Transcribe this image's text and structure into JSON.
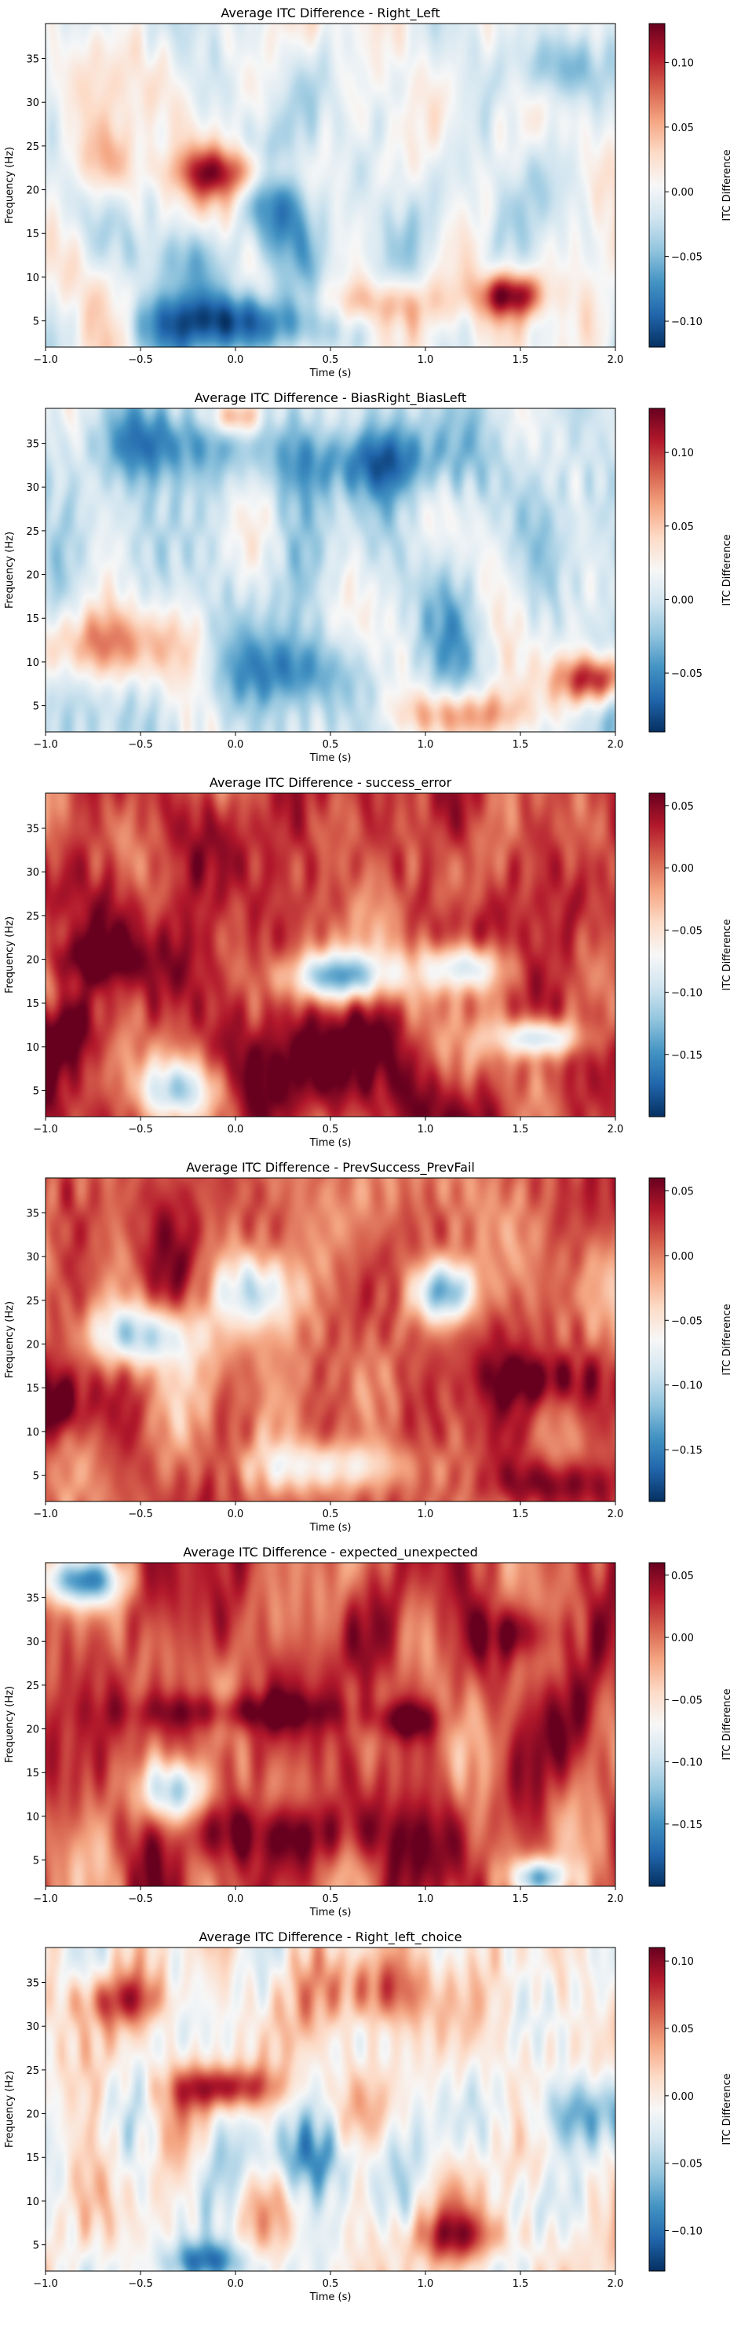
{
  "chart_data": [
    {
      "type": "heatmap",
      "title": "Average ITC Difference - Right_Left",
      "xlabel": "Time (s)",
      "ylabel": "Frequency (Hz)",
      "colorbar_label": "ITC Difference",
      "xlim": [
        -1.0,
        2.0
      ],
      "ylim": [
        2,
        39
      ],
      "x_ticks": [
        "−1.0",
        "−0.5",
        "0.0",
        "0.5",
        "1.0",
        "1.5",
        "2.0"
      ],
      "y_ticks": [
        "5",
        "10",
        "15",
        "20",
        "25",
        "30",
        "35"
      ],
      "y_tick_values": [
        5,
        10,
        15,
        20,
        25,
        30,
        35
      ],
      "colorbar_range": [
        -0.12,
        0.13
      ],
      "colorbar_ticks": [
        "−0.10",
        "−0.05",
        "0.00",
        "0.05",
        "0.10"
      ],
      "colorbar_tick_values": [
        -0.1,
        -0.05,
        0.0,
        0.05,
        0.1
      ],
      "colormap": "RdBu_r",
      "seed": 11,
      "features": [
        {
          "t": -0.05,
          "f": 22,
          "v": 0.09,
          "st": 0.22,
          "sf": 2.0
        },
        {
          "t": -0.05,
          "f": 5,
          "v": -0.11,
          "st": 0.35,
          "sf": 2.5
        },
        {
          "t": 0.25,
          "f": 18,
          "v": -0.09,
          "st": 0.15,
          "sf": 5.0
        },
        {
          "t": 1.45,
          "f": 8,
          "v": 0.12,
          "st": 0.12,
          "sf": 1.8
        },
        {
          "t": 0.7,
          "f": 7,
          "v": 0.06,
          "st": 0.3,
          "sf": 2.0
        },
        {
          "t": -0.7,
          "f": 23,
          "v": 0.05,
          "st": 0.15,
          "sf": 3.0
        },
        {
          "t": 1.7,
          "f": 34,
          "v": -0.08,
          "st": 0.15,
          "sf": 3.0
        },
        {
          "t": -0.3,
          "f": 12,
          "v": -0.06,
          "st": 0.2,
          "sf": 3.0
        }
      ]
    },
    {
      "type": "heatmap",
      "title": "Average ITC Difference - BiasRight_BiasLeft",
      "xlabel": "Time (s)",
      "ylabel": "Frequency (Hz)",
      "colorbar_label": "ITC Difference",
      "xlim": [
        -1.0,
        2.0
      ],
      "ylim": [
        2,
        39
      ],
      "x_ticks": [
        "−1.0",
        "−0.5",
        "0.0",
        "0.5",
        "1.0",
        "1.5",
        "2.0"
      ],
      "y_ticks": [
        "5",
        "10",
        "15",
        "20",
        "25",
        "30",
        "35"
      ],
      "y_tick_values": [
        5,
        10,
        15,
        20,
        25,
        30,
        35
      ],
      "colorbar_range": [
        -0.09,
        0.13
      ],
      "colorbar_ticks": [
        "−0.05",
        "0.00",
        "0.05",
        "0.10"
      ],
      "colorbar_tick_values": [
        -0.05,
        0.0,
        0.05,
        0.1
      ],
      "colormap": "RdBu_r",
      "seed": 23,
      "features": [
        {
          "t": -0.7,
          "f": 12,
          "v": 0.07,
          "st": 0.3,
          "sf": 3.0
        },
        {
          "t": 1.9,
          "f": 8,
          "v": 0.12,
          "st": 0.15,
          "sf": 2.0
        },
        {
          "t": 0.7,
          "f": 33,
          "v": -0.07,
          "st": 0.3,
          "sf": 3.0
        },
        {
          "t": 0.3,
          "f": 9,
          "v": -0.06,
          "st": 0.2,
          "sf": 3.0
        },
        {
          "t": 1.2,
          "f": 4,
          "v": 0.07,
          "st": 0.25,
          "sf": 2.0
        },
        {
          "t": -0.4,
          "f": 35,
          "v": -0.06,
          "st": 0.25,
          "sf": 3.0
        },
        {
          "t": 0.0,
          "f": 38,
          "v": 0.08,
          "st": 0.1,
          "sf": 1.5
        }
      ]
    },
    {
      "type": "heatmap",
      "title": "Average ITC Difference - success_error",
      "xlabel": "Time (s)",
      "ylabel": "Frequency (Hz)",
      "colorbar_label": "ITC Difference",
      "xlim": [
        -1.0,
        2.0
      ],
      "ylim": [
        2,
        39
      ],
      "x_ticks": [
        "−1.0",
        "−0.5",
        "0.0",
        "0.5",
        "1.0",
        "1.5",
        "2.0"
      ],
      "y_ticks": [
        "5",
        "10",
        "15",
        "20",
        "25",
        "30",
        "35"
      ],
      "y_tick_values": [
        5,
        10,
        15,
        20,
        25,
        30,
        35
      ],
      "colorbar_range": [
        -0.2,
        0.06
      ],
      "colorbar_ticks": [
        "−0.15",
        "−0.10",
        "−0.05",
        "0.00",
        "0.05"
      ],
      "colorbar_tick_values": [
        -0.15,
        -0.1,
        -0.05,
        0.0,
        0.05
      ],
      "colormap": "RdBu_r",
      "seed": 37,
      "offset": 0.02,
      "features": [
        {
          "t": -0.85,
          "f": 12,
          "v": 0.05,
          "st": 0.15,
          "sf": 3.0
        },
        {
          "t": 0.25,
          "f": 7,
          "v": 0.06,
          "st": 0.25,
          "sf": 4.0
        },
        {
          "t": 0.55,
          "f": 18,
          "v": -0.15,
          "st": 0.2,
          "sf": 2.0
        },
        {
          "t": 1.2,
          "f": 19,
          "v": -0.13,
          "st": 0.15,
          "sf": 2.0
        },
        {
          "t": -0.3,
          "f": 5,
          "v": -0.12,
          "st": 0.15,
          "sf": 2.5
        },
        {
          "t": 1.6,
          "f": 11,
          "v": -0.12,
          "st": 0.15,
          "sf": 1.5
        },
        {
          "t": -0.8,
          "f": 20,
          "v": 0.05,
          "st": 0.2,
          "sf": 2.0
        }
      ]
    },
    {
      "type": "heatmap",
      "title": "Average ITC Difference - PrevSuccess_PrevFail",
      "xlabel": "Time (s)",
      "ylabel": "Frequency (Hz)",
      "colorbar_label": "ITC Difference",
      "xlim": [
        -1.0,
        2.0
      ],
      "ylim": [
        2,
        39
      ],
      "x_ticks": [
        "−1.0",
        "−0.5",
        "0.0",
        "0.5",
        "1.0",
        "1.5",
        "2.0"
      ],
      "y_ticks": [
        "5",
        "10",
        "15",
        "20",
        "25",
        "30",
        "35"
      ],
      "y_tick_values": [
        5,
        10,
        15,
        20,
        25,
        30,
        35
      ],
      "colorbar_range": [
        -0.19,
        0.06
      ],
      "colorbar_ticks": [
        "−0.15",
        "−0.10",
        "−0.05",
        "0.00",
        "0.05"
      ],
      "colorbar_tick_values": [
        -0.15,
        -0.1,
        -0.05,
        0.0,
        0.05
      ],
      "colormap": "RdBu_r",
      "seed": 53,
      "offset": 0.01,
      "features": [
        {
          "t": -0.95,
          "f": 13,
          "v": 0.06,
          "st": 0.12,
          "sf": 2.5
        },
        {
          "t": 1.1,
          "f": 26,
          "v": -0.15,
          "st": 0.12,
          "sf": 2.5
        },
        {
          "t": -0.5,
          "f": 21,
          "v": -0.12,
          "st": 0.2,
          "sf": 2.5
        },
        {
          "t": 1.7,
          "f": 4,
          "v": 0.06,
          "st": 0.25,
          "sf": 2.0
        },
        {
          "t": 1.6,
          "f": 16,
          "v": 0.05,
          "st": 0.2,
          "sf": 2.0
        },
        {
          "t": 0.1,
          "f": 26,
          "v": -0.1,
          "st": 0.15,
          "sf": 3.0
        },
        {
          "t": 0.5,
          "f": 6,
          "v": -0.08,
          "st": 0.3,
          "sf": 2.0
        }
      ]
    },
    {
      "type": "heatmap",
      "title": "Average ITC Difference - expected_unexpected",
      "xlabel": "Time (s)",
      "ylabel": "Frequency (Hz)",
      "colorbar_label": "ITC Difference",
      "xlim": [
        -1.0,
        2.0
      ],
      "ylim": [
        2,
        39
      ],
      "x_ticks": [
        "−1.0",
        "−0.5",
        "0.0",
        "0.5",
        "1.0",
        "1.5",
        "2.0"
      ],
      "y_ticks": [
        "5",
        "10",
        "15",
        "20",
        "25",
        "30",
        "35"
      ],
      "y_tick_values": [
        5,
        10,
        15,
        20,
        25,
        30,
        35
      ],
      "colorbar_range": [
        -0.2,
        0.06
      ],
      "colorbar_ticks": [
        "−0.15",
        "−0.10",
        "−0.05",
        "0.00",
        "0.05"
      ],
      "colorbar_tick_values": [
        -0.15,
        -0.1,
        -0.05,
        0.0,
        0.05
      ],
      "colormap": "RdBu_r",
      "seed": 71,
      "offset": 0.015,
      "features": [
        {
          "t": -0.8,
          "f": 37,
          "v": -0.15,
          "st": 0.15,
          "sf": 2.0
        },
        {
          "t": 0.0,
          "f": 22,
          "v": 0.05,
          "st": 0.4,
          "sf": 1.5
        },
        {
          "t": 0.9,
          "f": 21,
          "v": 0.06,
          "st": 0.12,
          "sf": 1.5
        },
        {
          "t": -0.3,
          "f": 13,
          "v": -0.12,
          "st": 0.15,
          "sf": 2.5
        },
        {
          "t": 0.3,
          "f": 8,
          "v": 0.05,
          "st": 0.4,
          "sf": 2.5
        },
        {
          "t": 1.5,
          "f": 31,
          "v": 0.05,
          "st": 0.15,
          "sf": 2.0
        },
        {
          "t": 1.6,
          "f": 3,
          "v": -0.14,
          "st": 0.1,
          "sf": 1.5
        }
      ]
    },
    {
      "type": "heatmap",
      "title": "Average ITC Difference - Right_left_choice",
      "xlabel": "Time (s)",
      "ylabel": "Frequency (Hz)",
      "colorbar_label": "ITC Difference",
      "xlim": [
        -1.0,
        2.0
      ],
      "ylim": [
        2,
        39
      ],
      "x_ticks": [
        "−1.0",
        "−0.5",
        "0.0",
        "0.5",
        "1.0",
        "1.5",
        "2.0"
      ],
      "y_ticks": [
        "5",
        "10",
        "15",
        "20",
        "25",
        "30",
        "35"
      ],
      "y_tick_values": [
        5,
        10,
        15,
        20,
        25,
        30,
        35
      ],
      "colorbar_range": [
        -0.13,
        0.11
      ],
      "colorbar_ticks": [
        "−0.10",
        "−0.05",
        "0.00",
        "0.05",
        "0.10"
      ],
      "colorbar_tick_values": [
        -0.1,
        -0.05,
        0.0,
        0.05,
        0.1
      ],
      "colormap": "RdBu_r",
      "seed": 89,
      "features": [
        {
          "t": -0.05,
          "f": 23,
          "v": 0.1,
          "st": 0.2,
          "sf": 1.8
        },
        {
          "t": 0.75,
          "f": 34,
          "v": 0.08,
          "st": 0.2,
          "sf": 3.0
        },
        {
          "t": -0.15,
          "f": 3,
          "v": -0.11,
          "st": 0.15,
          "sf": 1.8
        },
        {
          "t": 1.8,
          "f": 20,
          "v": -0.08,
          "st": 0.2,
          "sf": 3.0
        },
        {
          "t": -0.6,
          "f": 33,
          "v": 0.06,
          "st": 0.2,
          "sf": 2.0
        },
        {
          "t": 0.4,
          "f": 15,
          "v": -0.06,
          "st": 0.3,
          "sf": 3.0
        },
        {
          "t": 1.2,
          "f": 6,
          "v": 0.06,
          "st": 0.25,
          "sf": 2.0
        }
      ]
    }
  ]
}
